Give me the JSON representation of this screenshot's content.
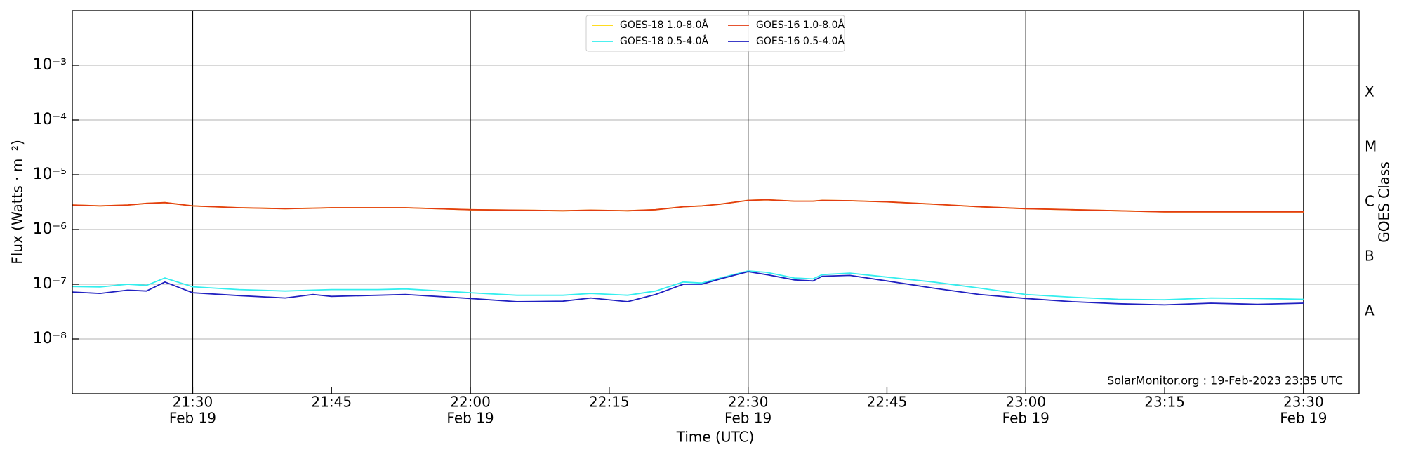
{
  "chart_data": {
    "type": "line",
    "ylabel": "Flux (Watts · m⁻²)",
    "xlabel": "Time (UTC)",
    "y2label": "GOES Class",
    "annotation": "SolarMonitor.org : 19-Feb-2023 23:35 UTC",
    "ylog": true,
    "grid": true,
    "legend": "upper center",
    "xlim": [
      "21:17",
      "23:36"
    ],
    "ylim": [
      1e-09,
      0.01
    ],
    "y2lim": [
      1e-09,
      0.01
    ],
    "yticks": [
      {
        "value": 1e-08,
        "label": "10⁻⁸"
      },
      {
        "value": 1e-07,
        "label": "10⁻⁷"
      },
      {
        "value": 1e-06,
        "label": "10⁻⁶"
      },
      {
        "value": 1e-05,
        "label": "10⁻⁵"
      },
      {
        "value": 0.0001,
        "label": "10⁻⁴"
      },
      {
        "value": 0.001,
        "label": "10⁻³"
      }
    ],
    "y2ticks": [
      {
        "value": 3.16e-08,
        "label": "A"
      },
      {
        "value": 3.16e-07,
        "label": "B"
      },
      {
        "value": 3.16e-06,
        "label": "C"
      },
      {
        "value": 3.16e-05,
        "label": "M"
      },
      {
        "value": 0.000316,
        "label": "X"
      }
    ],
    "xticks": [
      {
        "value": "21:30",
        "label": "21:30",
        "date": "Feb 19"
      },
      {
        "value": "21:45",
        "label": "21:45"
      },
      {
        "value": "22:00",
        "label": "22:00",
        "date": "Feb 19"
      },
      {
        "value": "22:15",
        "label": "22:15"
      },
      {
        "value": "22:30",
        "label": "22:30",
        "date": "Feb 19"
      },
      {
        "value": "22:45",
        "label": "22:45"
      },
      {
        "value": "23:00",
        "label": "23:00",
        "date": "Feb 19"
      },
      {
        "value": "23:15",
        "label": "23:15"
      },
      {
        "value": "23:30",
        "label": "23:30",
        "date": "Feb 19"
      }
    ],
    "x": [
      "21:17",
      "21:20",
      "21:23",
      "21:25",
      "21:27",
      "21:30",
      "21:35",
      "21:40",
      "21:43",
      "21:45",
      "21:50",
      "21:53",
      "22:00",
      "22:05",
      "22:10",
      "22:13",
      "22:17",
      "22:20",
      "22:23",
      "22:25",
      "22:27",
      "22:30",
      "22:32",
      "22:35",
      "22:37",
      "22:38",
      "22:41",
      "22:45",
      "22:50",
      "22:55",
      "23:00",
      "23:05",
      "23:10",
      "23:15",
      "23:20",
      "23:25",
      "23:30"
    ],
    "series": [
      {
        "name": "GOES-18 1.0-8.0Å",
        "color": "#ffd700",
        "values": [
          2.8e-06,
          2.7e-06,
          2.8e-06,
          3e-06,
          3.1e-06,
          2.7e-06,
          2.5e-06,
          2.4e-06,
          2.45e-06,
          2.5e-06,
          2.5e-06,
          2.5e-06,
          2.3e-06,
          2.25e-06,
          2.2e-06,
          2.25e-06,
          2.2e-06,
          2.3e-06,
          2.6e-06,
          2.7e-06,
          2.9e-06,
          3.4e-06,
          3.5e-06,
          3.3e-06,
          3.3e-06,
          3.4e-06,
          3.35e-06,
          3.2e-06,
          2.9e-06,
          2.6e-06,
          2.4e-06,
          2.3e-06,
          2.2e-06,
          2.1e-06,
          2.1e-06,
          2.1e-06,
          2.1e-06
        ]
      },
      {
        "name": "GOES-18 0.5-4.0Å",
        "color": "#33eeee",
        "values": [
          9.1e-08,
          8.9e-08,
          1e-07,
          9.5e-08,
          1.3e-07,
          9e-08,
          8e-08,
          7.5e-08,
          7.8e-08,
          8e-08,
          8e-08,
          8.2e-08,
          7e-08,
          6.3e-08,
          6.3e-08,
          6.8e-08,
          6.3e-08,
          7.5e-08,
          1.1e-07,
          1.05e-07,
          1.3e-07,
          1.75e-07,
          1.65e-07,
          1.3e-07,
          1.25e-07,
          1.5e-07,
          1.6e-07,
          1.35e-07,
          1.1e-07,
          8.5e-08,
          6.5e-08,
          5.8e-08,
          5.3e-08,
          5.2e-08,
          5.6e-08,
          5.5e-08,
          5.3e-08
        ]
      },
      {
        "name": "GOES-16 1.0-8.0Å",
        "color": "#e23c12",
        "values": [
          2.8e-06,
          2.7e-06,
          2.8e-06,
          3e-06,
          3.1e-06,
          2.7e-06,
          2.5e-06,
          2.4e-06,
          2.45e-06,
          2.5e-06,
          2.5e-06,
          2.5e-06,
          2.3e-06,
          2.25e-06,
          2.2e-06,
          2.25e-06,
          2.2e-06,
          2.3e-06,
          2.6e-06,
          2.7e-06,
          2.9e-06,
          3.4e-06,
          3.5e-06,
          3.3e-06,
          3.3e-06,
          3.4e-06,
          3.35e-06,
          3.2e-06,
          2.9e-06,
          2.6e-06,
          2.4e-06,
          2.3e-06,
          2.2e-06,
          2.1e-06,
          2.1e-06,
          2.1e-06,
          2.1e-06
        ]
      },
      {
        "name": "GOES-16 0.5-4.0Å",
        "color": "#2020c0",
        "values": [
          7.2e-08,
          6.8e-08,
          7.8e-08,
          7.5e-08,
          1.1e-07,
          7e-08,
          6.2e-08,
          5.6e-08,
          6.5e-08,
          6e-08,
          6.3e-08,
          6.5e-08,
          5.5e-08,
          4.8e-08,
          4.9e-08,
          5.6e-08,
          4.8e-08,
          6.5e-08,
          1e-07,
          1e-07,
          1.25e-07,
          1.7e-07,
          1.5e-07,
          1.2e-07,
          1.15e-07,
          1.4e-07,
          1.45e-07,
          1.15e-07,
          8.5e-08,
          6.5e-08,
          5.5e-08,
          4.8e-08,
          4.4e-08,
          4.2e-08,
          4.5e-08,
          4.3e-08,
          4.5e-08
        ]
      }
    ]
  }
}
